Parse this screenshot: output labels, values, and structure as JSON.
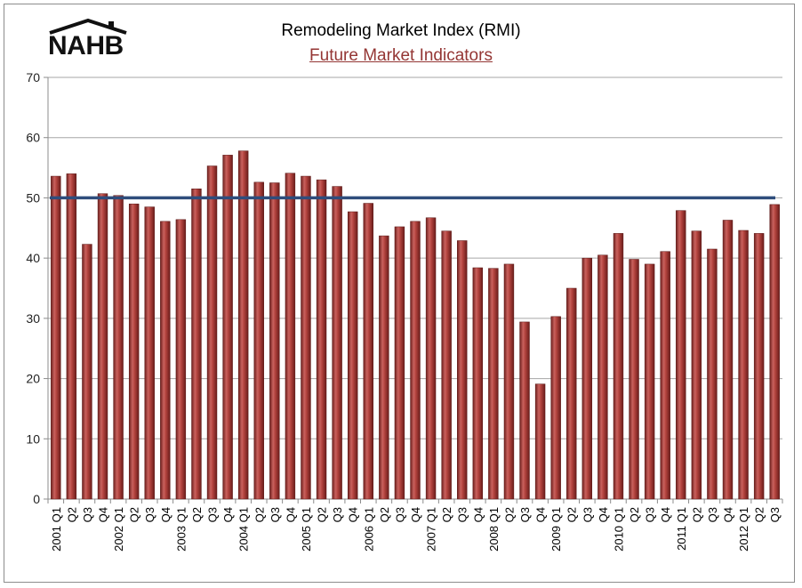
{
  "logo": {
    "text": "NAHB"
  },
  "colors": {
    "bar": "#9c2f2c",
    "reference_line": "#2f4d7c",
    "grid": "#a6a6a6",
    "subtitle": "#943634"
  },
  "chart_data": {
    "type": "bar",
    "title": "Remodeling Market Index (RMI)",
    "subtitle": "Future Market Indicators",
    "xlabel": "",
    "ylabel": "",
    "ylim": [
      0,
      70
    ],
    "yticks": [
      0,
      10,
      20,
      30,
      40,
      50,
      60,
      70
    ],
    "grid": true,
    "legend": "none",
    "reference_line": 50,
    "categories": [
      "2001 Q1",
      "Q2",
      "Q3",
      "Q4",
      "2002 Q1",
      "Q2",
      "Q3",
      "Q4",
      "2003 Q1",
      "Q2",
      "Q3",
      "Q4",
      "2004 Q1",
      "Q2",
      "Q3",
      "Q4",
      "2005 Q1",
      "Q2",
      "Q3",
      "Q4",
      "2006 Q1",
      "Q2",
      "Q3",
      "Q4",
      "2007 Q1",
      "Q2",
      "Q3",
      "Q4",
      "2008 Q1",
      "Q2",
      "Q3",
      "Q4",
      "2009 Q1",
      "Q2",
      "Q3",
      "Q4",
      "2010 Q1",
      "Q2",
      "Q3",
      "Q4",
      "2011 Q1",
      "Q2",
      "Q3",
      "Q4",
      "2012 Q1",
      "Q2",
      "Q3"
    ],
    "values": [
      53.6,
      54.0,
      42.3,
      50.7,
      50.4,
      49.0,
      48.5,
      46.1,
      46.4,
      51.5,
      55.3,
      57.1,
      57.8,
      52.6,
      52.5,
      54.1,
      53.6,
      53.0,
      51.9,
      47.7,
      49.1,
      43.7,
      45.2,
      46.1,
      46.7,
      44.5,
      42.9,
      38.4,
      38.3,
      39.0,
      29.4,
      19.1,
      30.3,
      35.0,
      40.0,
      40.5,
      44.1,
      39.8,
      39.0,
      41.1,
      47.9,
      44.5,
      41.5,
      46.3,
      44.6,
      44.1,
      48.9
    ]
  }
}
